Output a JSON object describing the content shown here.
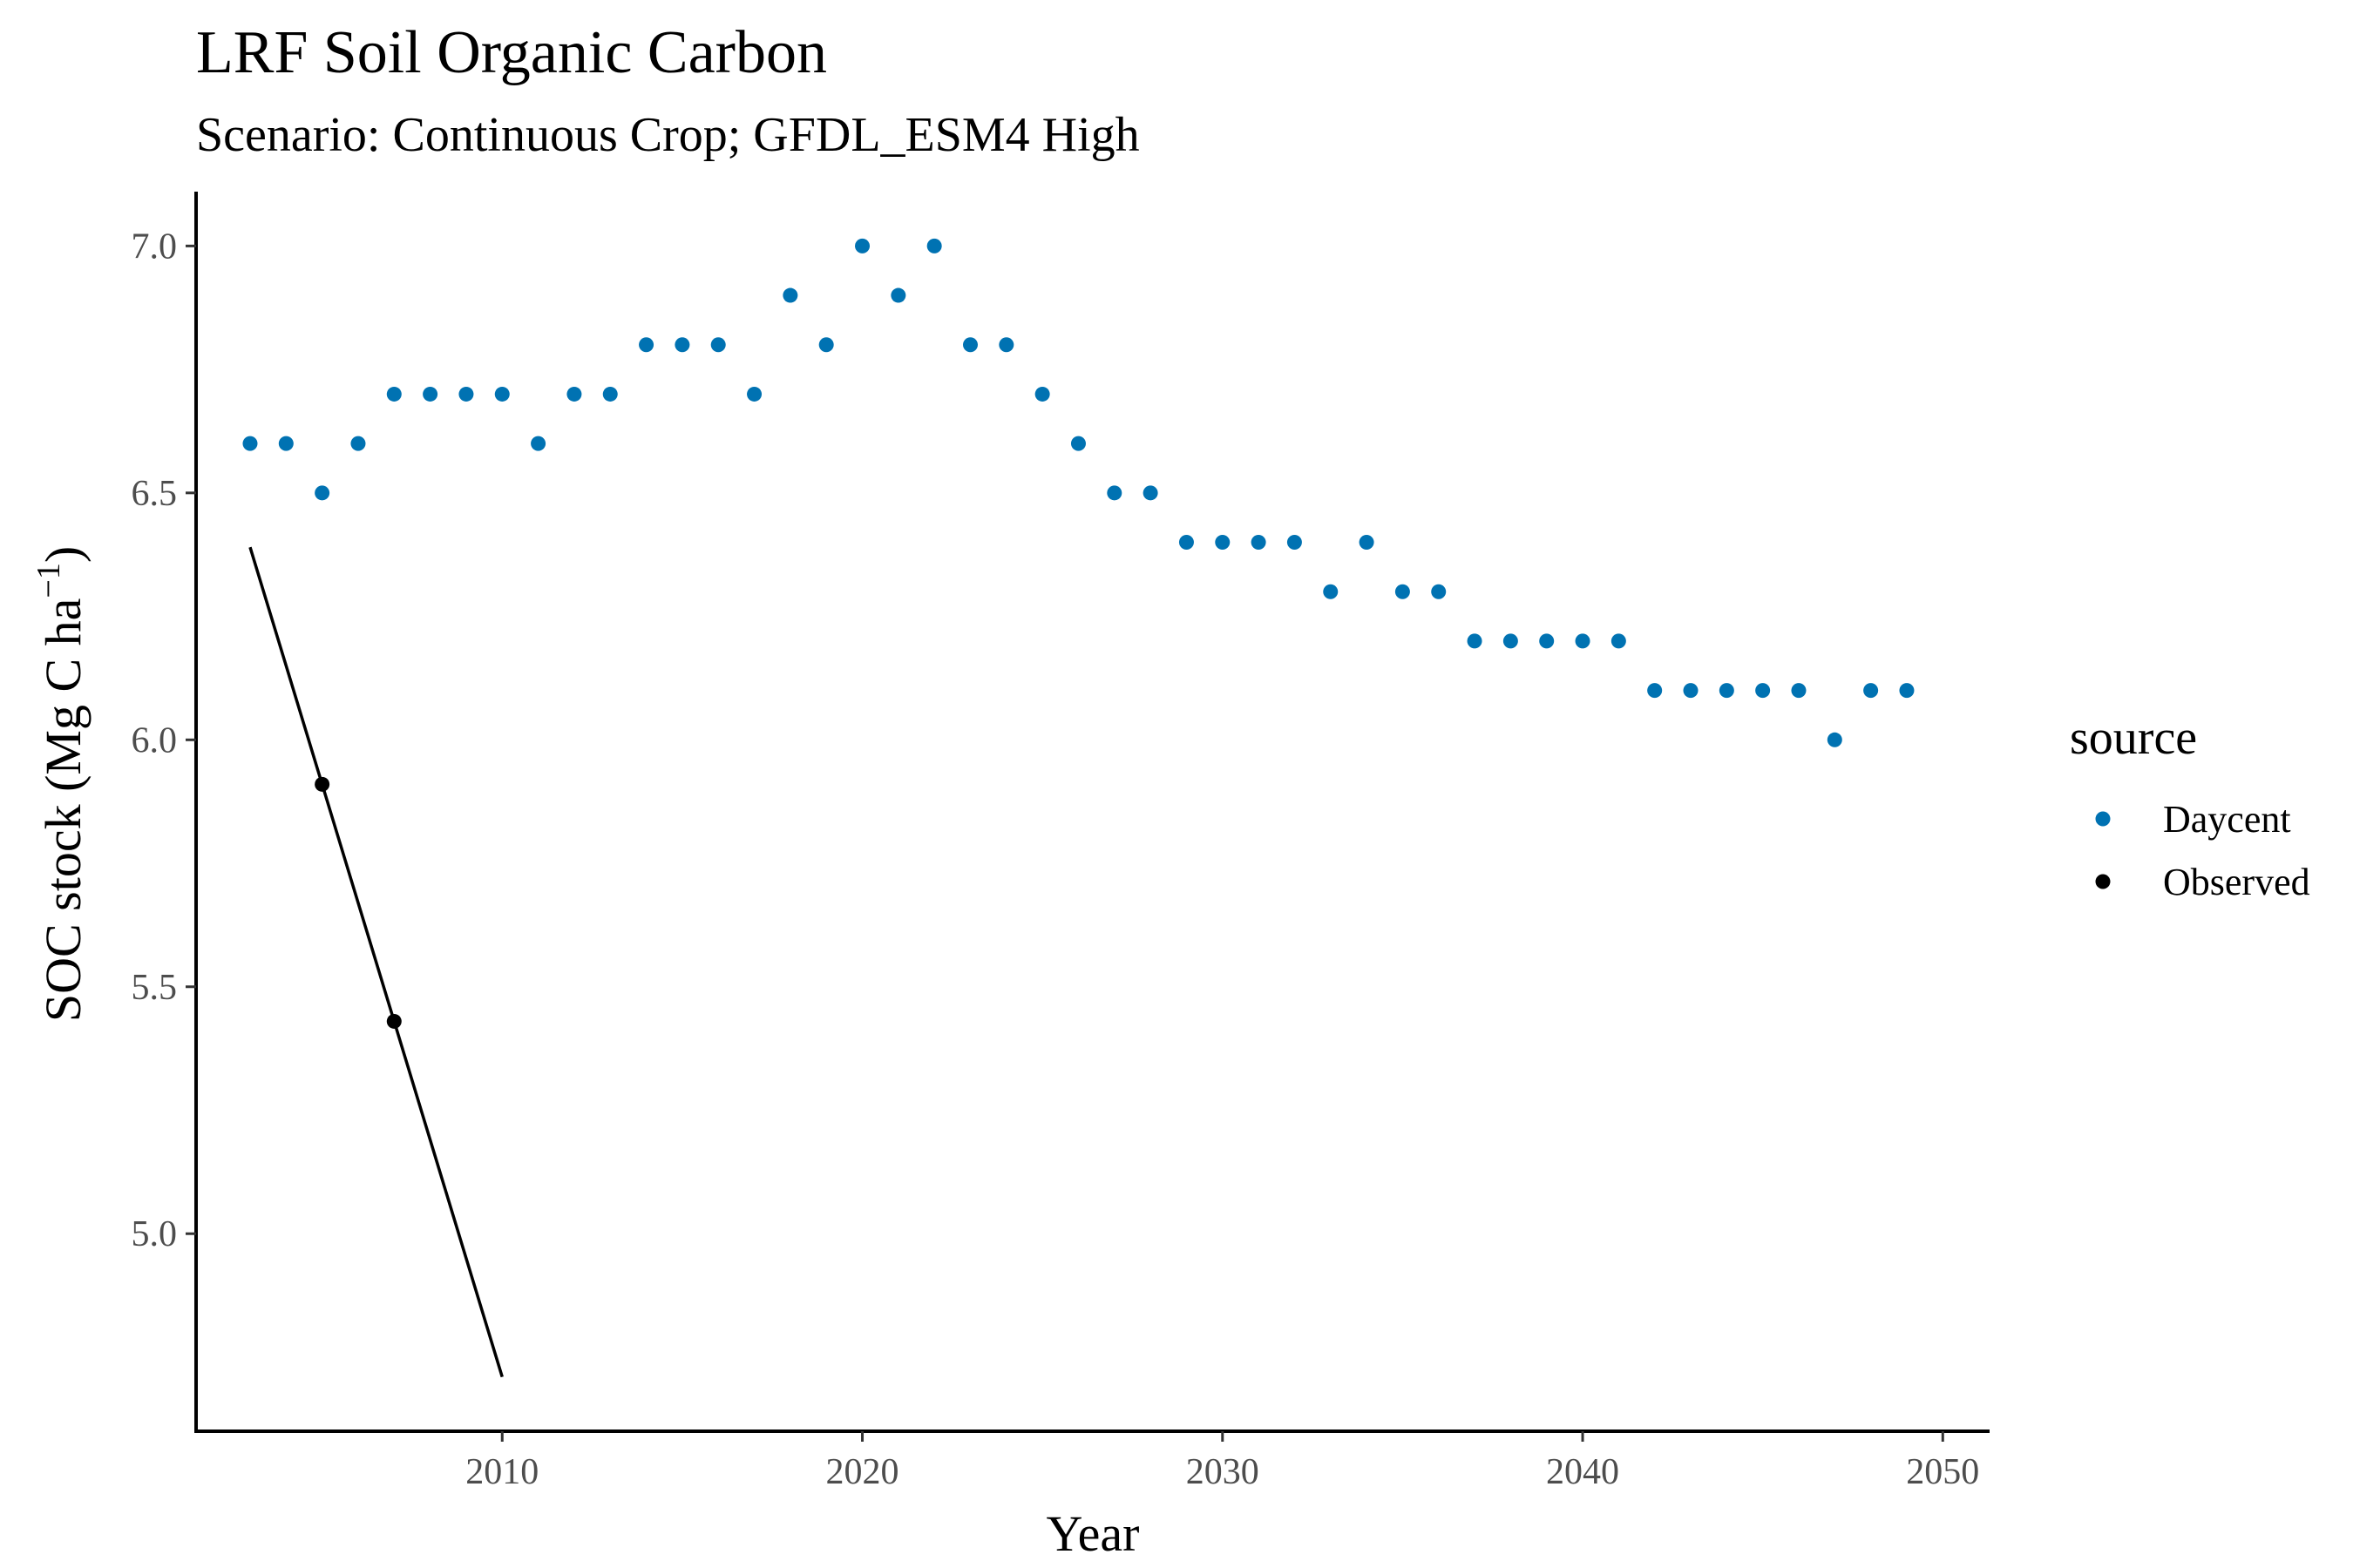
{
  "chart_data": {
    "type": "scatter",
    "title": "LRF Soil Organic Carbon",
    "subtitle": "Scenario: Continuous Crop; GFDL_ESM4 High",
    "xlabel": "Year",
    "ylabel_main": "SOC stock (Mg C ha",
    "ylabel_sup": "−1",
    "ylabel_close": ")",
    "xlim": [
      2001.5,
      2051.3
    ],
    "ylim": [
      4.6,
      7.11
    ],
    "x_ticks": [
      2010,
      2020,
      2030,
      2040,
      2050
    ],
    "y_ticks": [
      5.0,
      5.5,
      6.0,
      6.5,
      7.0
    ],
    "y_tick_labels": [
      "5.0",
      "5.5",
      "6.0",
      "6.5",
      "7.0"
    ],
    "grid": false,
    "legend": {
      "title": "source",
      "position": "right",
      "entries": [
        {
          "label": "Daycent",
          "color": "#0072B2"
        },
        {
          "label": "Observed",
          "color": "#000000"
        }
      ]
    },
    "series": [
      {
        "name": "Daycent",
        "color": "#0072B2",
        "x": [
          2003,
          2004,
          2005,
          2006,
          2007,
          2008,
          2009,
          2010,
          2011,
          2012,
          2013,
          2014,
          2015,
          2016,
          2017,
          2018,
          2019,
          2020,
          2021,
          2022,
          2023,
          2024,
          2025,
          2026,
          2027,
          2028,
          2029,
          2030,
          2031,
          2032,
          2033,
          2034,
          2035,
          2036,
          2037,
          2038,
          2039,
          2040,
          2041,
          2042,
          2043,
          2044,
          2045,
          2046,
          2047,
          2048,
          2049
        ],
        "y": [
          6.6,
          6.6,
          6.5,
          6.6,
          6.7,
          6.7,
          6.7,
          6.7,
          6.6,
          6.7,
          6.7,
          6.8,
          6.8,
          6.8,
          6.7,
          6.9,
          6.8,
          7.0,
          6.9,
          7.0,
          6.8,
          6.8,
          6.7,
          6.6,
          6.5,
          6.5,
          6.4,
          6.4,
          6.4,
          6.4,
          6.3,
          6.4,
          6.3,
          6.3,
          6.2,
          6.2,
          6.2,
          6.2,
          6.2,
          6.1,
          6.1,
          6.1,
          6.1,
          6.1,
          6.0,
          6.1,
          6.1
        ]
      },
      {
        "name": "Observed",
        "color": "#000000",
        "x": [
          2005,
          2007
        ],
        "y": [
          5.91,
          5.43
        ]
      }
    ],
    "trend_line": {
      "color": "#000000",
      "x": [
        2003,
        2010
      ],
      "y": [
        6.39,
        4.71
      ]
    }
  }
}
